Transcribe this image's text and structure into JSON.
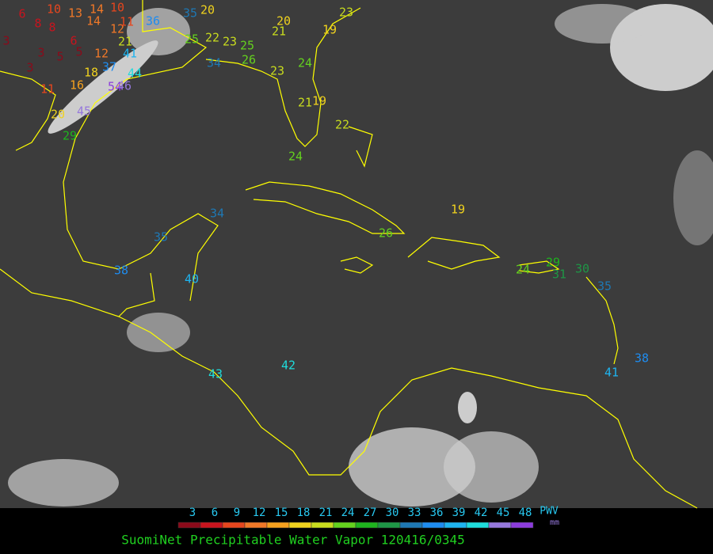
{
  "title": "SuomiNet Precipitable Water Vapor 120416/0345",
  "legend": {
    "unit_line1": "PWV",
    "unit_line2": "mm",
    "ticks": [
      3,
      6,
      9,
      12,
      15,
      18,
      21,
      24,
      27,
      30,
      33,
      36,
      39,
      42,
      45,
      48
    ],
    "colors": [
      "#8b0a1a",
      "#c8141e",
      "#e6461e",
      "#f07828",
      "#f5a01e",
      "#f0d21e",
      "#c8dc1e",
      "#64d21e",
      "#1eb41e",
      "#1e9646",
      "#1e78b4",
      "#1e8cf0",
      "#1eb4f0",
      "#1edcdc",
      "#9678dc",
      "#8c3cdc"
    ]
  },
  "stations": [
    {
      "value": 6
    },
    {
      "value": 8
    },
    {
      "value": 8
    },
    {
      "value": 10
    },
    {
      "value": 13
    },
    {
      "value": 14
    },
    {
      "value": 10
    },
    {
      "value": 14
    },
    {
      "value": 12
    },
    {
      "value": 11
    },
    {
      "value": 36
    },
    {
      "value": 35
    },
    {
      "value": 20
    },
    {
      "value": 3
    },
    {
      "value": 3
    },
    {
      "value": 5
    },
    {
      "value": 6
    },
    {
      "value": 5
    },
    {
      "value": 3
    },
    {
      "value": 12
    },
    {
      "value": 21
    },
    {
      "value": 41
    },
    {
      "value": 37
    },
    {
      "value": 18
    },
    {
      "value": 44
    },
    {
      "value": 16
    },
    {
      "value": 11
    },
    {
      "value": 54
    },
    {
      "value": 46
    },
    {
      "value": 45
    },
    {
      "value": 20
    },
    {
      "value": 29
    },
    {
      "value": 25
    },
    {
      "value": 22
    },
    {
      "value": 23
    },
    {
      "value": 25
    },
    {
      "value": 26
    },
    {
      "value": 34
    },
    {
      "value": 23
    },
    {
      "value": 20
    },
    {
      "value": 21
    },
    {
      "value": 19
    },
    {
      "value": 23
    },
    {
      "value": 24
    },
    {
      "value": 22
    },
    {
      "value": 24
    },
    {
      "value": 21
    },
    {
      "value": 19
    },
    {
      "value": 19
    },
    {
      "value": 26
    },
    {
      "value": 24
    },
    {
      "value": 29
    },
    {
      "value": 30
    },
    {
      "value": 35
    },
    {
      "value": 38
    },
    {
      "value": 41
    },
    {
      "value": 35
    },
    {
      "value": 38
    },
    {
      "value": 40
    },
    {
      "value": 34
    },
    {
      "value": 43
    },
    {
      "value": 42
    },
    {
      "value": 31
    }
  ]
}
